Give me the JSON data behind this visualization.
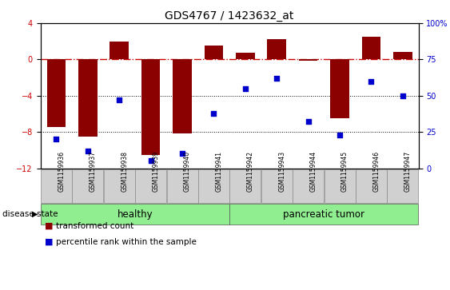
{
  "title": "GDS4767 / 1423632_at",
  "samples": [
    "GSM1159936",
    "GSM1159937",
    "GSM1159938",
    "GSM1159939",
    "GSM1159940",
    "GSM1159941",
    "GSM1159942",
    "GSM1159943",
    "GSM1159944",
    "GSM1159945",
    "GSM1159946",
    "GSM1159947"
  ],
  "transformed_count": [
    -7.5,
    -8.5,
    2.0,
    -10.5,
    -8.2,
    1.5,
    0.7,
    2.2,
    -0.1,
    -6.5,
    2.5,
    0.8
  ],
  "percentile_rank": [
    20,
    12,
    47,
    5,
    10,
    38,
    55,
    62,
    32,
    23,
    60,
    50
  ],
  "groups": [
    {
      "label": "healthy",
      "start": 0,
      "end": 6,
      "color": "#90ee90"
    },
    {
      "label": "pancreatic tumor",
      "start": 6,
      "end": 12,
      "color": "#90ee90"
    }
  ],
  "ylim_left": [
    -12,
    4
  ],
  "ylim_right": [
    0,
    100
  ],
  "yticks_left": [
    -12,
    -8,
    -4,
    0,
    4
  ],
  "yticks_right": [
    0,
    25,
    50,
    75,
    100
  ],
  "bar_color": "#8B0000",
  "dot_color": "#0000CD",
  "hline_y": 0,
  "hline_color": "#CC0000",
  "dotted_lines": [
    -4,
    -8
  ],
  "dotted_color": "#000000",
  "bar_width": 0.6,
  "legend_items": [
    {
      "label": "transformed count",
      "color": "#8B0000"
    },
    {
      "label": "percentile rank within the sample",
      "color": "#0000CD"
    }
  ],
  "disease_state_label": "disease state",
  "background_color": "#ffffff",
  "tick_label_fontsize": 7,
  "group_label_fontsize": 8.5,
  "title_fontsize": 10
}
